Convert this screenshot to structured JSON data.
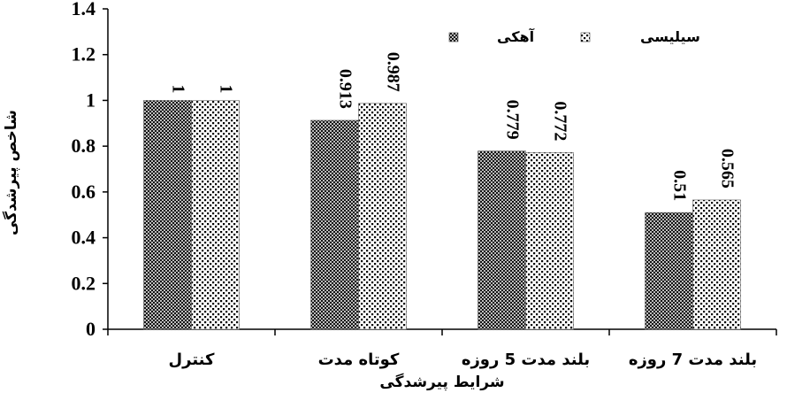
{
  "chart_data": {
    "type": "bar",
    "categories": [
      "کنترل",
      "کوتاه مدت",
      "بلند مدت 5 روزه",
      "بلند مدت 7 روزه"
    ],
    "series": [
      {
        "name": "آهکی",
        "values": [
          1,
          0.913,
          0.779,
          0.51
        ],
        "labels": [
          "1",
          "0.913",
          "0.779",
          "0.51"
        ],
        "pattern": "crosshatch"
      },
      {
        "name": "سیلیسی",
        "values": [
          1,
          0.987,
          0.772,
          0.565
        ],
        "labels": [
          "1",
          "0.987",
          "0.772",
          "0.565"
        ],
        "pattern": "dots"
      }
    ],
    "yticks": [
      "0",
      "0.2",
      "0.4",
      "0.6",
      "0.8",
      "1",
      "1.2",
      "1.4"
    ],
    "ylim": [
      0,
      1.4
    ],
    "xlabel": "شرایط پیرشدگی",
    "ylabel": "شاخص پیرشدگی",
    "grid": false,
    "legend_position": "top-right"
  }
}
